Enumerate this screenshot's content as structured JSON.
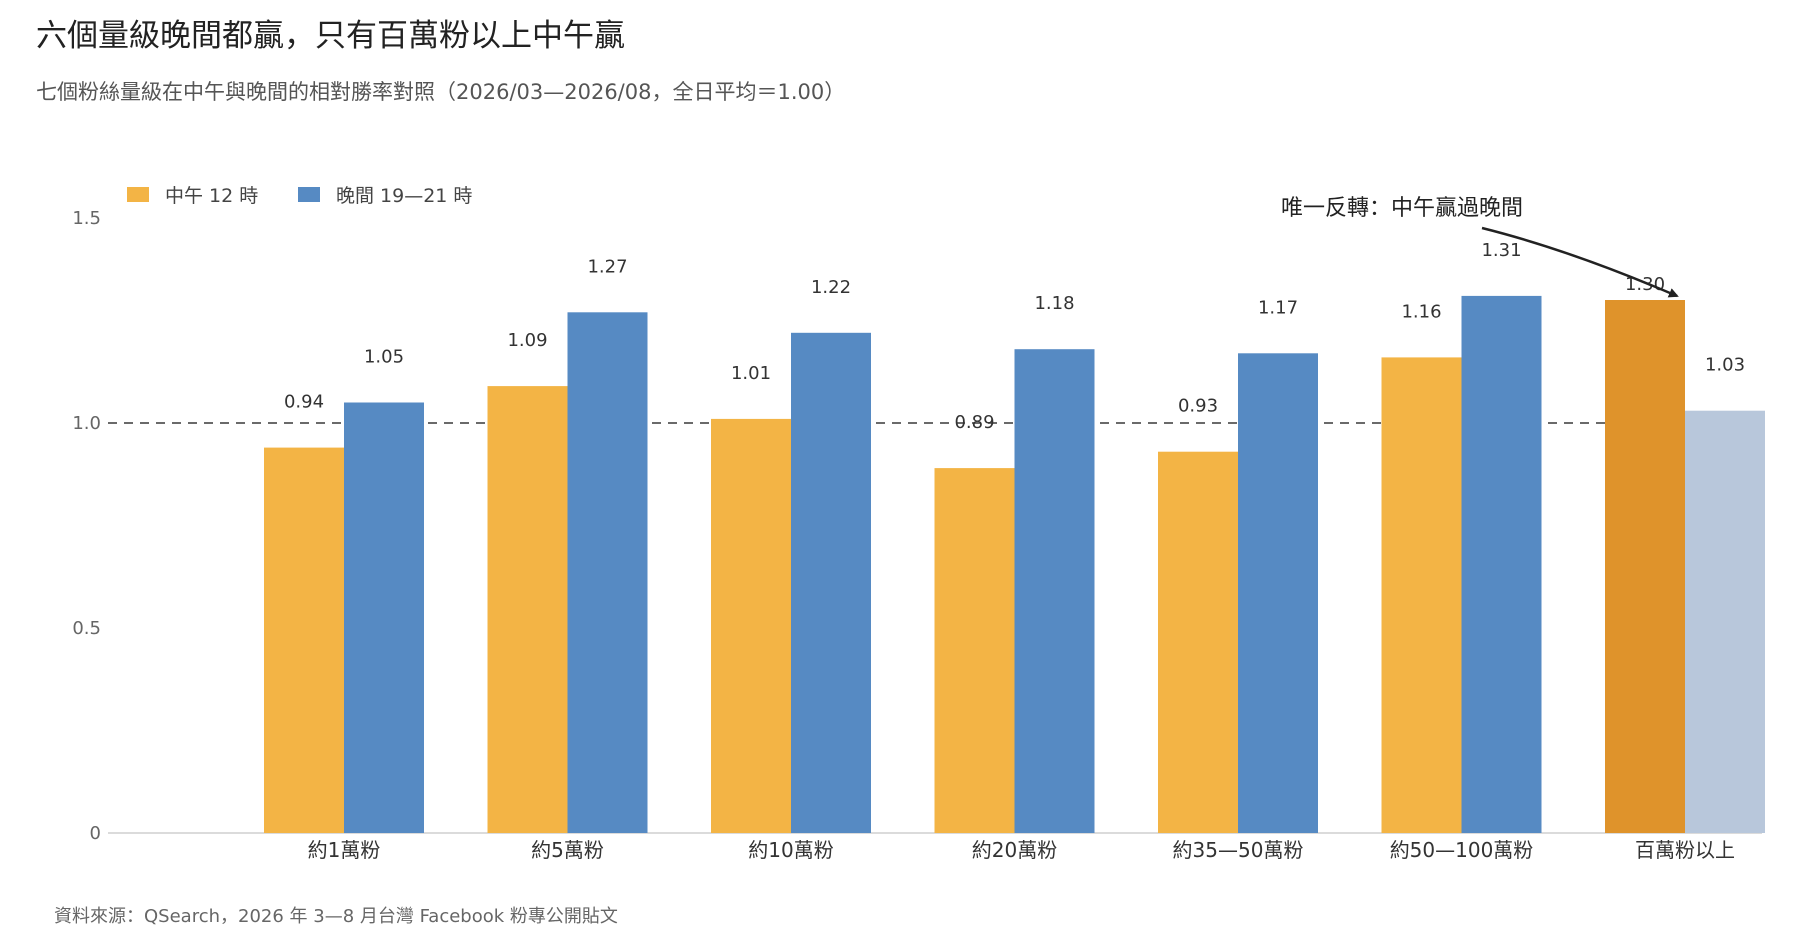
{
  "header": {
    "title": "六個量級晚間都贏，只有百萬粉以上中午贏",
    "subtitle": "七個粉絲量級在中午與晚間的相對勝率對照（2026/03—2026/08，全日平均＝1.00）"
  },
  "footer": {
    "source": "資料來源：QSearch，2026 年 3—8 月台灣 Facebook 粉專公開貼文"
  },
  "chart_data": {
    "type": "bar",
    "title": "六個量級晚間都贏，只有百萬粉以上中午贏",
    "subtitle": "七個粉絲量級在中午與晚間的相對勝率對照（2026/03—2026/08，全日平均＝1.00）",
    "xlabel": "",
    "ylabel": "",
    "categories": [
      "約1萬粉",
      "約5萬粉",
      "約10萬粉",
      "約20萬粉",
      "約35—50萬粉",
      "約50—100萬粉",
      "百萬粉以上"
    ],
    "series": [
      {
        "name": "中午 12 時",
        "color": "#F3B445",
        "values": [
          0.94,
          1.09,
          1.01,
          0.89,
          0.93,
          1.16,
          1.3
        ],
        "labels": [
          "0.94",
          "1.09",
          "1.01",
          "0.89",
          "0.93",
          "1.16",
          "1.30"
        ]
      },
      {
        "name": "晚間 19—21 時",
        "color": "#568AC3",
        "values": [
          1.05,
          1.27,
          1.22,
          1.18,
          1.17,
          1.31,
          1.03
        ],
        "labels": [
          "1.05",
          "1.27",
          "1.22",
          "1.18",
          "1.17",
          "1.31",
          "1.03"
        ]
      }
    ],
    "highlight": {
      "category_index": 6,
      "colors": [
        "#DF932B",
        "#B8C7DB"
      ]
    },
    "ylim": [
      0,
      1.5
    ],
    "yticks": [
      "0",
      "0.5",
      "1.0",
      "1.5"
    ],
    "ytick_values": [
      0,
      0.5,
      1.0,
      1.5
    ],
    "reference_line": {
      "value": 1.0,
      "style": "dashed",
      "color": "#555555"
    },
    "annotation": {
      "text": "唯一反轉：中午贏過晚間",
      "target_category_index": 6,
      "target_series_index": 0
    },
    "legend_position": "top-left",
    "grid": false
  }
}
